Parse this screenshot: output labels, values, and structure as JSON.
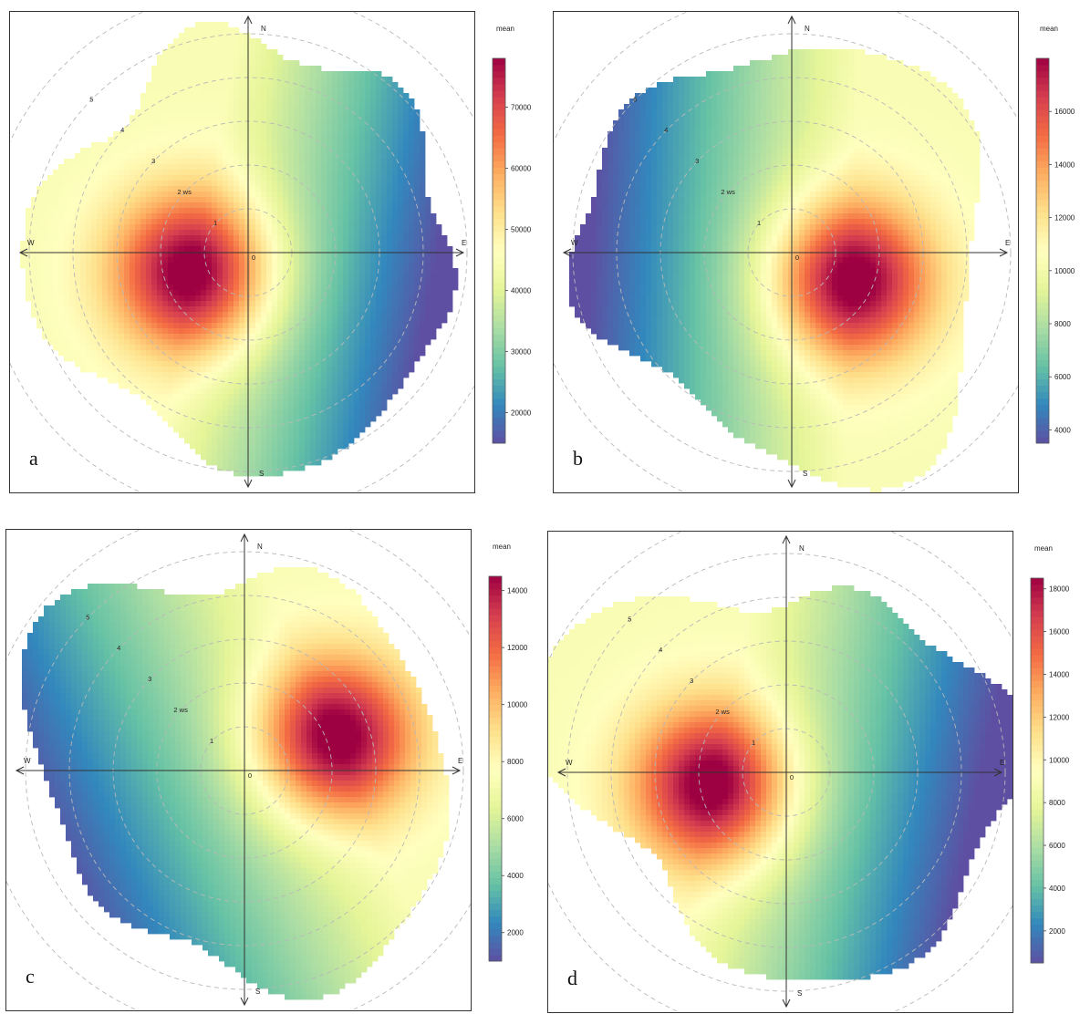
{
  "figure": {
    "panels": [
      {
        "letter": "a",
        "legend_title": "mean",
        "ws_label_suffix": " ws",
        "compass": {
          "n": "N",
          "s": "S",
          "e": "E",
          "w": "W"
        },
        "rings": [
          "0",
          "1",
          "2",
          "3",
          "4",
          "5"
        ]
      },
      {
        "letter": "b",
        "legend_title": "mean",
        "ws_label_suffix": " ws",
        "compass": {
          "n": "N",
          "s": "S",
          "e": "E",
          "w": "W"
        },
        "rings": [
          "0",
          "1",
          "2",
          "3",
          "4",
          "5"
        ]
      },
      {
        "letter": "c",
        "legend_title": "mean",
        "ws_label_suffix": " ws",
        "compass": {
          "n": "N",
          "s": "S",
          "e": "E",
          "w": "W"
        },
        "rings": [
          "0",
          "1",
          "2",
          "3",
          "4",
          "5"
        ]
      },
      {
        "letter": "d",
        "legend_title": "mean",
        "ws_label_suffix": " ws",
        "compass": {
          "n": "N",
          "s": "S",
          "e": "E",
          "w": "W"
        },
        "rings": [
          "0",
          "1",
          "2",
          "3",
          "4",
          "5"
        ]
      }
    ]
  },
  "chart_data": [
    {
      "type": "heatmap",
      "subtype": "polar",
      "panel": "a",
      "radial_variable": "ws",
      "radial_ticks": [
        0,
        1,
        2,
        3,
        4,
        5
      ],
      "colorbar_title": "mean",
      "colorbar_range": [
        15000,
        78000
      ],
      "colorbar_ticks": [
        20000,
        30000,
        40000,
        50000,
        60000,
        70000
      ],
      "hotspot_direction": "W-SW",
      "coldspot_direction": "E-SE",
      "grid": true
    },
    {
      "type": "heatmap",
      "subtype": "polar",
      "panel": "b",
      "radial_variable": "ws",
      "radial_ticks": [
        0,
        1,
        2,
        3,
        4,
        5
      ],
      "colorbar_title": "mean",
      "colorbar_range": [
        3500,
        18000
      ],
      "colorbar_ticks": [
        4000,
        6000,
        8000,
        10000,
        12000,
        14000,
        16000
      ],
      "hotspot_direction": "E-SE",
      "coldspot_direction": "W",
      "grid": true
    },
    {
      "type": "heatmap",
      "subtype": "polar",
      "panel": "c",
      "radial_variable": "ws",
      "radial_ticks": [
        0,
        1,
        2,
        3,
        4,
        5
      ],
      "colorbar_title": "mean",
      "colorbar_range": [
        1000,
        14500
      ],
      "colorbar_ticks": [
        2000,
        4000,
        6000,
        8000,
        10000,
        12000,
        14000
      ],
      "hotspot_direction": "E-NE",
      "coldspot_direction": "W-SW",
      "grid": true
    },
    {
      "type": "heatmap",
      "subtype": "polar",
      "panel": "d",
      "radial_variable": "ws",
      "radial_ticks": [
        0,
        1,
        2,
        3,
        4,
        5
      ],
      "colorbar_title": "mean",
      "colorbar_range": [
        500,
        18500
      ],
      "colorbar_ticks": [
        2000,
        4000,
        6000,
        8000,
        10000,
        12000,
        14000,
        16000,
        18000
      ],
      "hotspot_direction": "W",
      "coldspot_direction": "E-SE",
      "grid": true
    }
  ]
}
